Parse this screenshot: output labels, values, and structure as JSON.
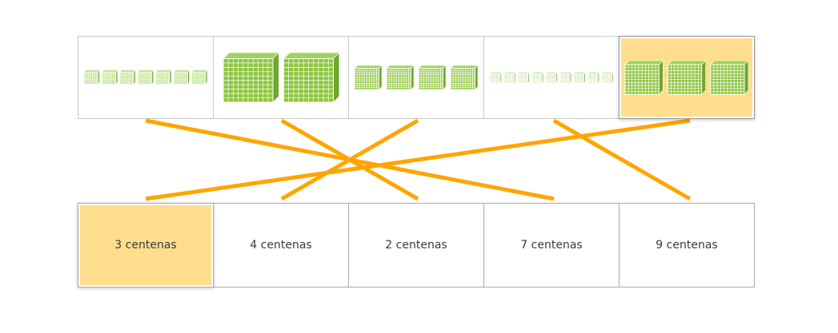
{
  "accent_line_color": "#ffa500",
  "selected_fill": "#fedd8e",
  "block_color": "#8dc63f",
  "top_cards": [
    {
      "id": "top-1",
      "hundreds": 7,
      "selected": false
    },
    {
      "id": "top-2",
      "hundreds": 2,
      "selected": false
    },
    {
      "id": "top-3",
      "hundreds": 4,
      "selected": false
    },
    {
      "id": "top-4",
      "hundreds": 9,
      "selected": false
    },
    {
      "id": "top-5",
      "hundreds": 3,
      "selected": true
    }
  ],
  "bottom_cards": [
    {
      "id": "bottom-1",
      "label": "3 centenas",
      "selected": true
    },
    {
      "id": "bottom-2",
      "label": "4 centenas",
      "selected": false
    },
    {
      "id": "bottom-3",
      "label": "2 centenas",
      "selected": false
    },
    {
      "id": "bottom-4",
      "label": "7 centenas",
      "selected": false
    },
    {
      "id": "bottom-5",
      "label": "9 centenas",
      "selected": false
    }
  ],
  "connections": [
    {
      "from": 1,
      "to": 4
    },
    {
      "from": 2,
      "to": 3
    },
    {
      "from": 3,
      "to": 2
    },
    {
      "from": 4,
      "to": 5
    },
    {
      "from": 5,
      "to": 1
    }
  ]
}
